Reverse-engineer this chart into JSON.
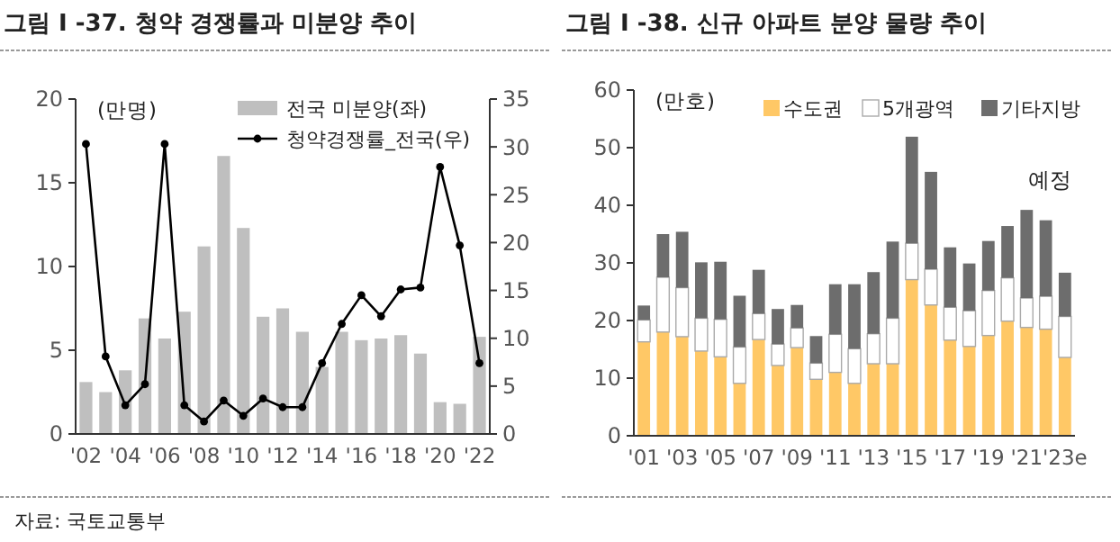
{
  "chart_data": [
    {
      "type": "bar",
      "title": "그림 I -37. 청약 경쟁률과 미분양 추이",
      "ylabel": "(만명)",
      "categories": [
        "'02",
        null,
        "'04",
        null,
        "'06",
        null,
        "'08",
        null,
        "'10",
        null,
        "'12",
        null,
        "'14",
        null,
        "'16",
        null,
        "'18",
        null,
        "'20",
        null,
        "'22"
      ],
      "series": [
        {
          "name": "전국 미분양(좌)",
          "color": "#bfbfbf",
          "values": [
            3.1,
            2.5,
            3.8,
            6.9,
            5.7,
            7.3,
            11.2,
            16.6,
            12.3,
            7.0,
            7.5,
            6.1,
            4.0,
            6.1,
            5.6,
            5.7,
            5.9,
            4.8,
            1.9,
            1.8,
            5.8
          ]
        },
        {
          "name": "청약경쟁률_전국(우)",
          "type": "line",
          "axis": "y2",
          "color": "#000000",
          "marker": "circle",
          "values": [
            30.3,
            8.1,
            3.0,
            5.2,
            30.3,
            3.0,
            1.3,
            3.5,
            1.9,
            3.7,
            2.8,
            2.8,
            7.4,
            11.5,
            14.5,
            12.3,
            15.1,
            15.3,
            27.9,
            19.7,
            7.4
          ]
        }
      ],
      "ylim": [
        0,
        20
      ],
      "yticks": [
        0,
        5,
        10,
        15,
        20
      ],
      "y2lim": [
        0,
        35
      ],
      "y2ticks": [
        0,
        5,
        10,
        15,
        20,
        25,
        30,
        35
      ],
      "legend": "top right",
      "grid": false,
      "annotations": [
        "자료: 국토교통부"
      ]
    },
    {
      "type": "bar",
      "title": "그림 I -38. 신규 아파트 분양 물량 추이",
      "ylabel": "(만호)",
      "stacked": true,
      "categories": [
        "'01",
        null,
        "'03",
        null,
        "'05",
        null,
        "'07",
        null,
        "'09",
        null,
        "'11",
        null,
        "'13",
        null,
        "'15",
        null,
        "'17",
        null,
        "'19",
        null,
        "'21",
        null,
        "'23e"
      ],
      "series": [
        {
          "name": "수도권",
          "color": "#ffc866",
          "values": [
            16.3,
            18.0,
            17.2,
            14.7,
            13.7,
            9.1,
            16.7,
            12.2,
            15.3,
            9.8,
            11.0,
            9.1,
            12.5,
            12.5,
            27.1,
            22.7,
            16.6,
            15.5,
            17.4,
            19.9,
            18.8,
            18.5,
            13.6
          ]
        },
        {
          "name": "5개광역",
          "color": "#ffffff",
          "values": [
            3.8,
            9.5,
            8.5,
            5.7,
            6.5,
            6.3,
            4.5,
            3.7,
            3.4,
            2.8,
            6.6,
            6.0,
            5.2,
            7.9,
            6.3,
            6.2,
            5.7,
            6.2,
            7.8,
            7.5,
            5.1,
            5.7,
            7.1
          ]
        },
        {
          "name": "기타지방",
          "color": "#6d6d6d",
          "values": [
            2.5,
            7.5,
            9.7,
            9.7,
            10.0,
            8.9,
            7.6,
            6.1,
            4.0,
            4.7,
            8.7,
            11.2,
            10.7,
            13.3,
            18.5,
            16.9,
            10.4,
            8.2,
            8.6,
            9.0,
            15.3,
            13.2,
            7.6
          ]
        }
      ],
      "ylim": [
        0,
        60
      ],
      "yticks": [
        0,
        10,
        20,
        30,
        40,
        50,
        60
      ],
      "legend": "top",
      "grid": false,
      "annotations": [
        "예정"
      ]
    }
  ]
}
